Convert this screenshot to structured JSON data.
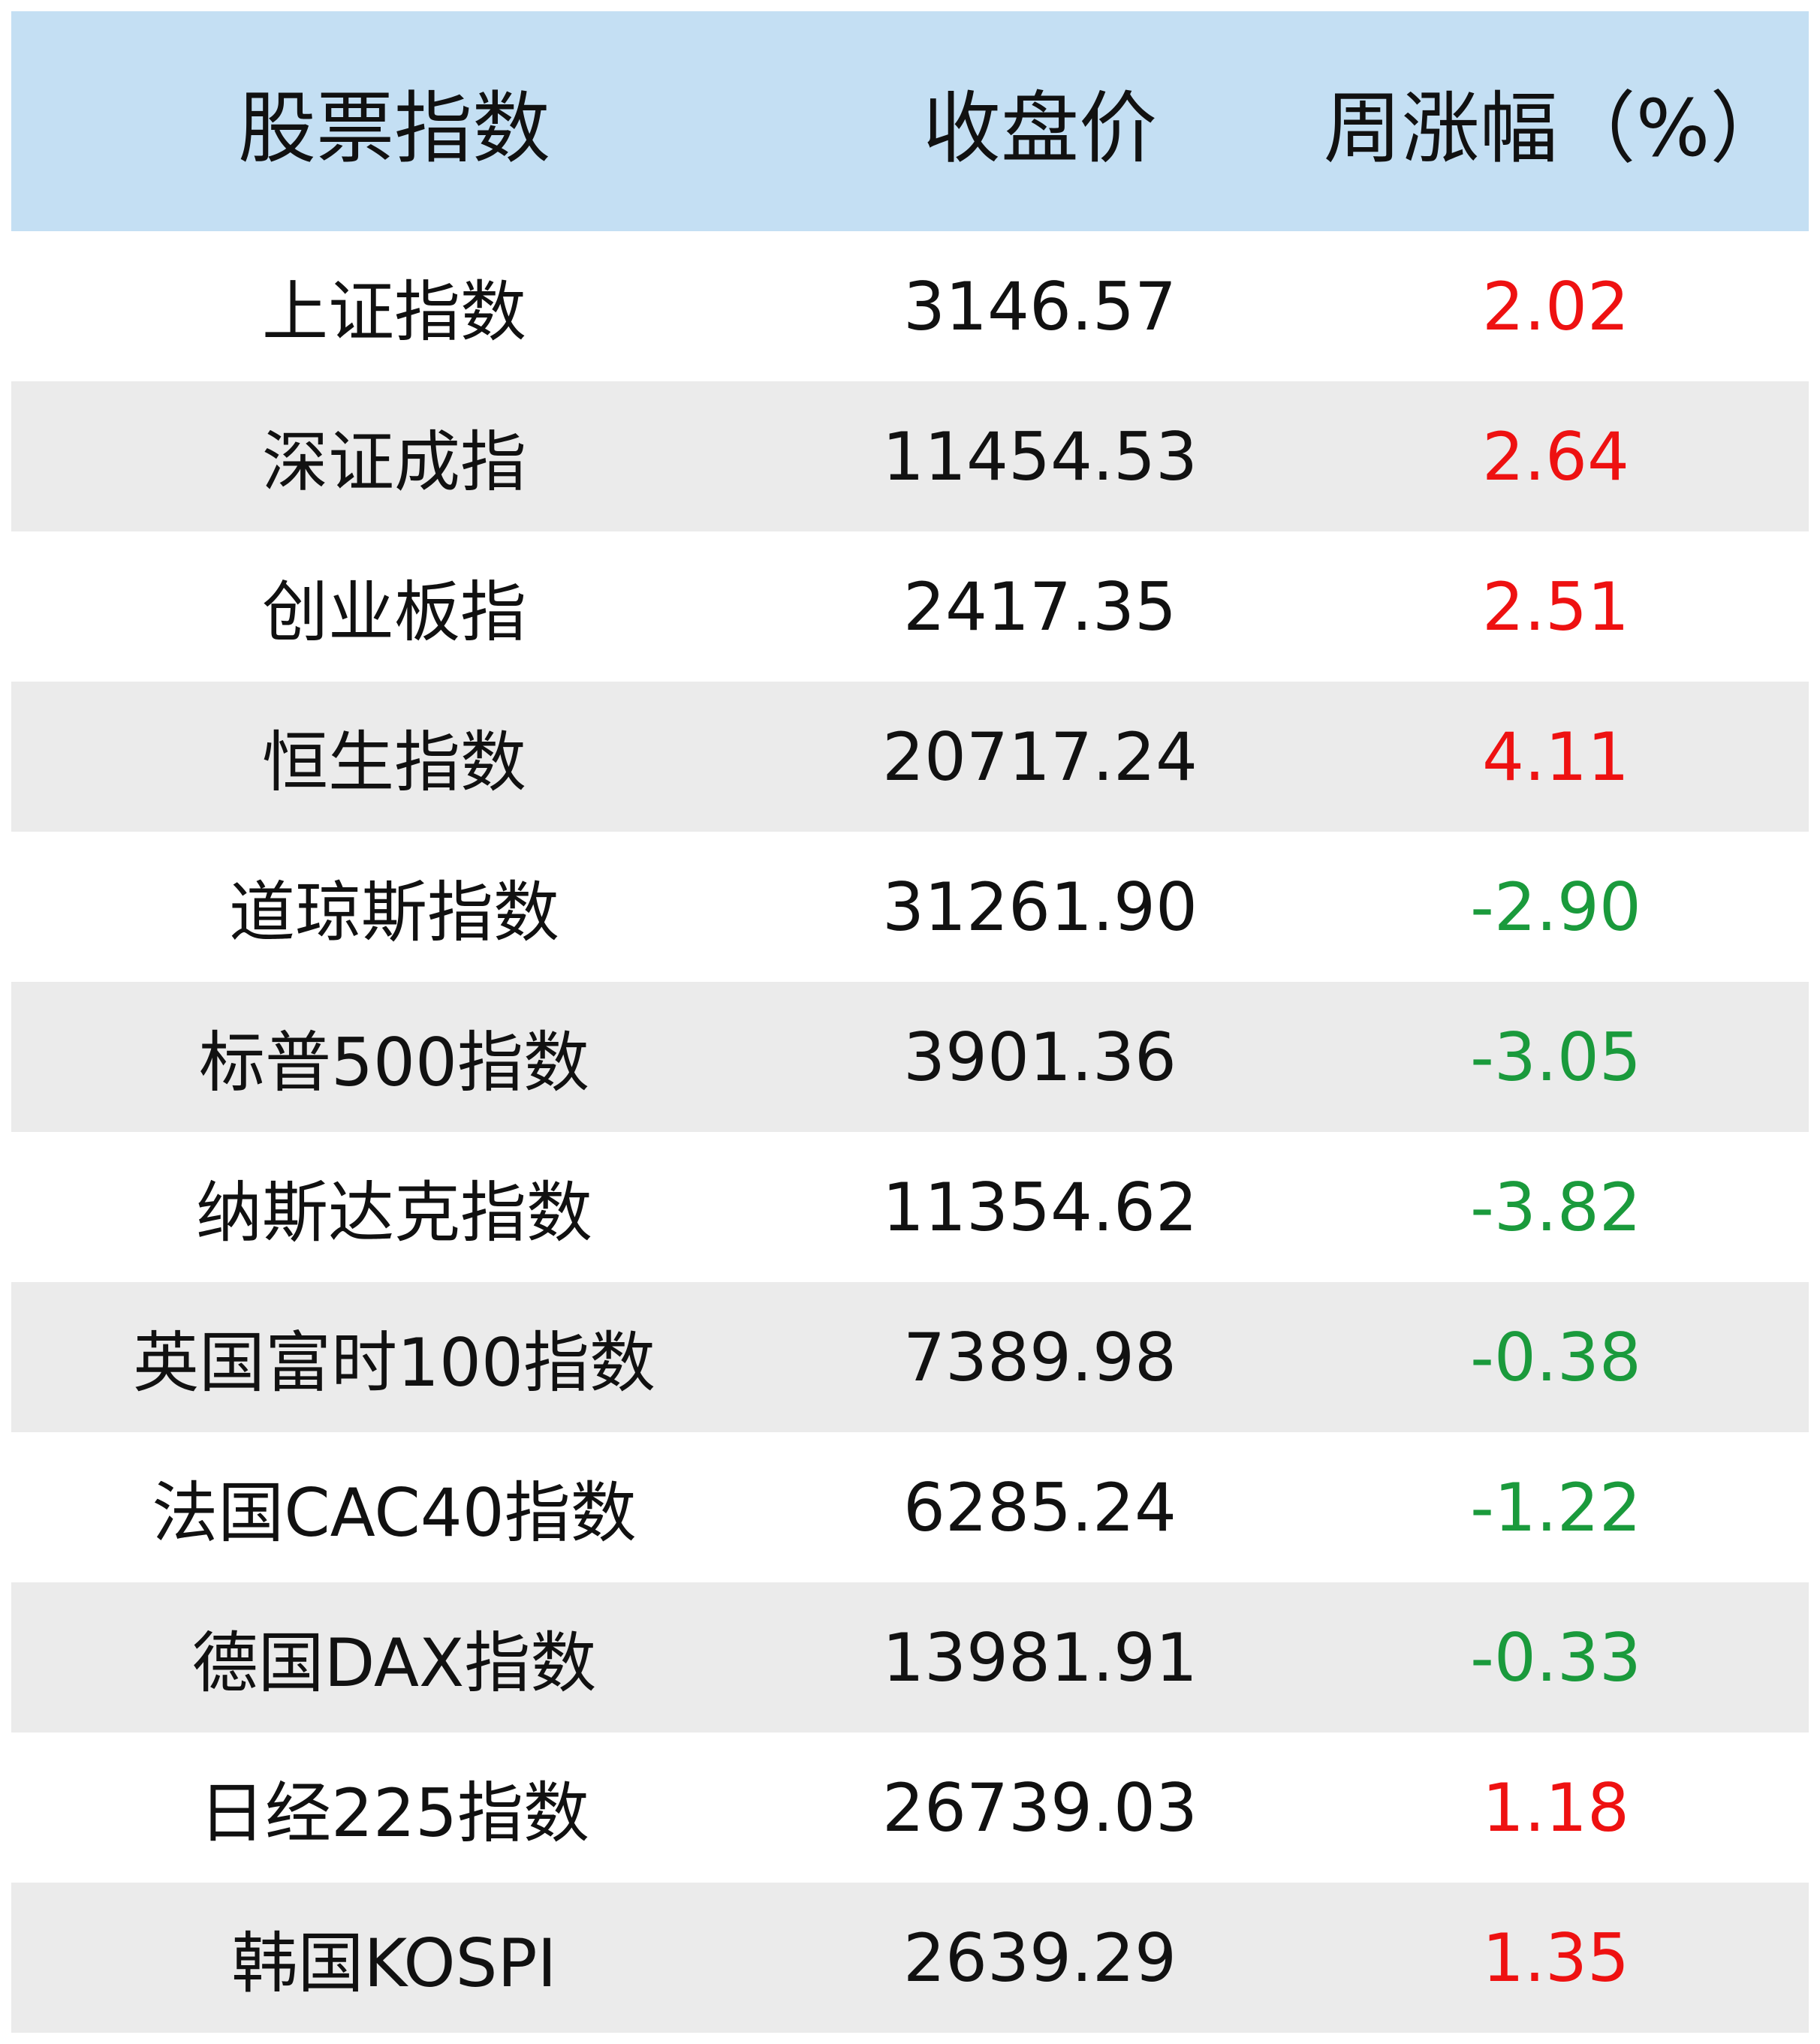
{
  "chart_data": {
    "type": "table",
    "columns": [
      "股票指数",
      "收盘价",
      "周涨幅（%）"
    ],
    "rows": [
      {
        "name": "上证指数",
        "close": "3146.57",
        "change": "2.02"
      },
      {
        "name": "深证成指",
        "close": "11454.53",
        "change": "2.64"
      },
      {
        "name": "创业板指",
        "close": "2417.35",
        "change": "2.51"
      },
      {
        "name": "恒生指数",
        "close": "20717.24",
        "change": "4.11"
      },
      {
        "name": "道琼斯指数",
        "close": "31261.90",
        "change": "-2.90"
      },
      {
        "name": "标普500指数",
        "close": "3901.36",
        "change": "-3.05"
      },
      {
        "name": "纳斯达克指数",
        "close": "11354.62",
        "change": "-3.82"
      },
      {
        "name": "英国富时100指数",
        "close": "7389.98",
        "change": "-0.38"
      },
      {
        "name": "法国CAC40指数",
        "close": "6285.24",
        "change": "-1.22"
      },
      {
        "name": "德国DAX指数",
        "close": "13981.91",
        "change": "-0.33"
      },
      {
        "name": "日经225指数",
        "close": "26739.03",
        "change": "1.18"
      },
      {
        "name": "韩国KOSPI",
        "close": "2639.29",
        "change": "1.35"
      }
    ],
    "colors": {
      "header_bg": "#c4dff3",
      "stripe_bg": "#ebebeb",
      "positive": "#ee1111",
      "negative": "#1a9a3c"
    }
  }
}
